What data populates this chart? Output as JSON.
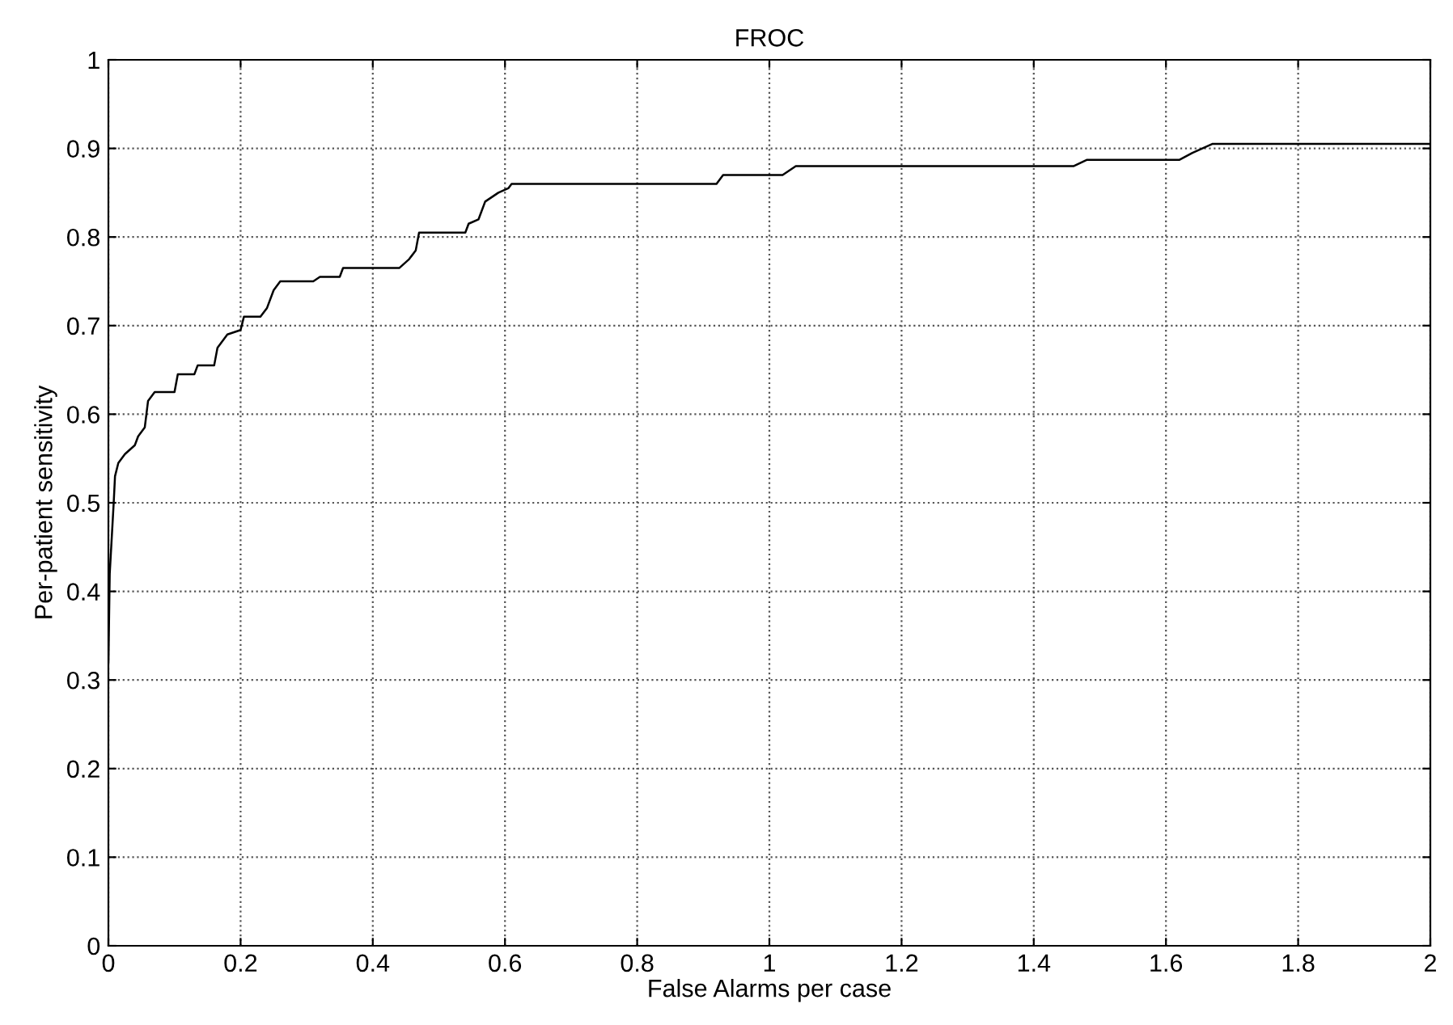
{
  "chart_data": {
    "type": "line",
    "title": "FROC",
    "xlabel": "False Alarms per case",
    "ylabel": "Per-patient sensitivity",
    "x": [
      0,
      0.002,
      0.005,
      0.008,
      0.01,
      0.015,
      0.025,
      0.04,
      0.045,
      0.055,
      0.06,
      0.07,
      0.1,
      0.105,
      0.13,
      0.135,
      0.16,
      0.165,
      0.18,
      0.2,
      0.205,
      0.23,
      0.24,
      0.25,
      0.26,
      0.31,
      0.32,
      0.35,
      0.355,
      0.44,
      0.455,
      0.465,
      0.47,
      0.54,
      0.545,
      0.56,
      0.57,
      0.59,
      0.605,
      0.61,
      0.92,
      0.93,
      1.02,
      1.04,
      1.46,
      1.48,
      1.62,
      1.64,
      1.67,
      2
    ],
    "series": [
      {
        "color": "#000000",
        "values": [
          0.32,
          0.42,
          0.46,
          0.5,
          0.53,
          0.545,
          0.555,
          0.565,
          0.575,
          0.585,
          0.615,
          0.625,
          0.625,
          0.645,
          0.645,
          0.655,
          0.655,
          0.675,
          0.69,
          0.695,
          0.71,
          0.71,
          0.72,
          0.74,
          0.75,
          0.75,
          0.755,
          0.755,
          0.765,
          0.765,
          0.775,
          0.785,
          0.805,
          0.805,
          0.815,
          0.82,
          0.84,
          0.85,
          0.855,
          0.86,
          0.86,
          0.87,
          0.87,
          0.88,
          0.88,
          0.887,
          0.887,
          0.895,
          0.905,
          0.905
        ]
      }
    ],
    "xlim": [
      0,
      2
    ],
    "ylim": [
      0,
      1
    ],
    "xticks": [
      0,
      0.2,
      0.4,
      0.6,
      0.8,
      1,
      1.2,
      1.4,
      1.6,
      1.8,
      2
    ],
    "yticks": [
      0,
      0.1,
      0.2,
      0.3,
      0.4,
      0.5,
      0.6,
      0.7,
      0.8,
      0.9,
      1
    ],
    "grid": true,
    "marker": "none",
    "line_style": "solid"
  }
}
